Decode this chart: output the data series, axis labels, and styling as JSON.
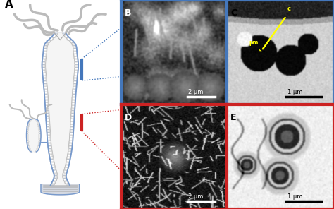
{
  "background_color": "#ffffff",
  "panel_A_label": "A",
  "panel_B_label": "B",
  "panel_C_label": "C",
  "panel_D_label": "D",
  "panel_E_label": "E",
  "blue_border_color": "#4477bb",
  "red_border_color": "#cc2222",
  "blue_dot_color": "#4477bb",
  "red_dot_color": "#cc2222",
  "scale_bar_B": "2 μm",
  "scale_bar_C": "1 μm",
  "scale_bar_D": "2 μm",
  "scale_bar_E": "1 μm",
  "hydra_body_fill": "#d8d8d8",
  "hydra_blue_outline": "#7799cc",
  "hydra_cell_white": "#ffffff",
  "hydra_cell_line": "#bbbbbb",
  "hydra_tentacle_color": "#bbbbbb",
  "hydra_inner_cavity": "#f0f0f0"
}
